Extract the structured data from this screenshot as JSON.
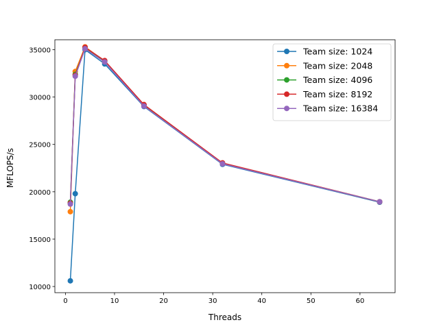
{
  "chart_data": {
    "type": "line",
    "title": "",
    "xlabel": "Threads",
    "ylabel": "MFLOPS/s",
    "xlim": [
      -2.15,
      67.15
    ],
    "ylim": [
      9350,
      36050
    ],
    "xticks": [
      0,
      10,
      20,
      30,
      40,
      50,
      60
    ],
    "yticks": [
      10000,
      15000,
      20000,
      25000,
      30000,
      35000
    ],
    "grid": false,
    "legend_position": "top-right",
    "series": [
      {
        "name": "Team size: 1024",
        "color": "#1f77b4",
        "x": [
          1,
          2,
          4,
          8,
          16,
          32,
          64
        ],
        "y": [
          10600,
          19800,
          35000,
          33500,
          29000,
          22900,
          18900
        ]
      },
      {
        "name": "Team size: 2048",
        "color": "#ff7f0e",
        "x": [
          1,
          2,
          4,
          8,
          16,
          32,
          64
        ],
        "y": [
          17900,
          32700,
          35300,
          33800,
          29200,
          23000,
          18950
        ]
      },
      {
        "name": "Team size: 4096",
        "color": "#2ca02c",
        "x": [
          1,
          2,
          4,
          8,
          16,
          32,
          64
        ],
        "y": [
          18900,
          32400,
          35200,
          33800,
          29150,
          23000,
          18950
        ]
      },
      {
        "name": "Team size: 8192",
        "color": "#d62728",
        "x": [
          1,
          2,
          4,
          8,
          16,
          32,
          64
        ],
        "y": [
          18800,
          32300,
          35250,
          33850,
          29200,
          23050,
          18950
        ]
      },
      {
        "name": "Team size: 16384",
        "color": "#9467bd",
        "x": [
          1,
          2,
          4,
          8,
          16,
          32,
          64
        ],
        "y": [
          18700,
          32200,
          35100,
          33700,
          29050,
          22950,
          18950
        ]
      }
    ]
  }
}
